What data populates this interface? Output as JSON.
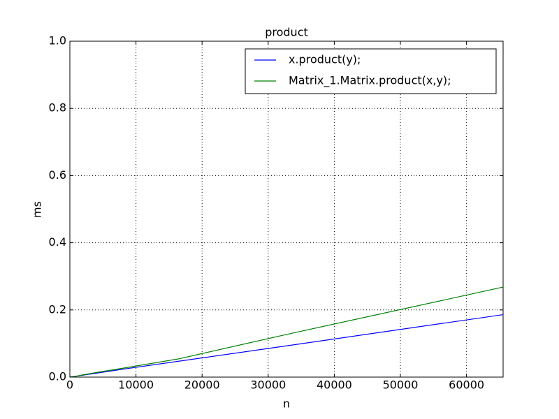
{
  "chart_data": {
    "type": "line",
    "title": "product",
    "x_label": "n",
    "y_label": "ms",
    "x": [
      0,
      1024,
      2048,
      4096,
      8192,
      16384,
      32768,
      65536
    ],
    "series": [
      {
        "name": "x.product(y);",
        "color": "#0000ff",
        "values": [
          0,
          0.003,
          0.006,
          0.012,
          0.024,
          0.047,
          0.093,
          0.186
        ]
      },
      {
        "name": "Matrix_1.Matrix.product(x,y);",
        "color": "#008000",
        "values": [
          0,
          0.003,
          0.007,
          0.014,
          0.027,
          0.054,
          0.127,
          0.268
        ]
      }
    ],
    "xlim": [
      0,
      65536
    ],
    "xticks": [
      0,
      10000,
      20000,
      30000,
      40000,
      50000,
      60000
    ],
    "ylim": [
      0,
      1
    ],
    "yticks": [
      {
        "value": 0,
        "label": "0.0"
      },
      {
        "value": 0.2,
        "label": "0.2"
      },
      {
        "value": 0.4,
        "label": "0.4"
      },
      {
        "value": 0.6,
        "label": "0.6"
      },
      {
        "value": 0.8,
        "label": "0.8"
      },
      {
        "value": 1,
        "label": "1.0"
      }
    ],
    "grid": true,
    "legend": "upper right"
  }
}
